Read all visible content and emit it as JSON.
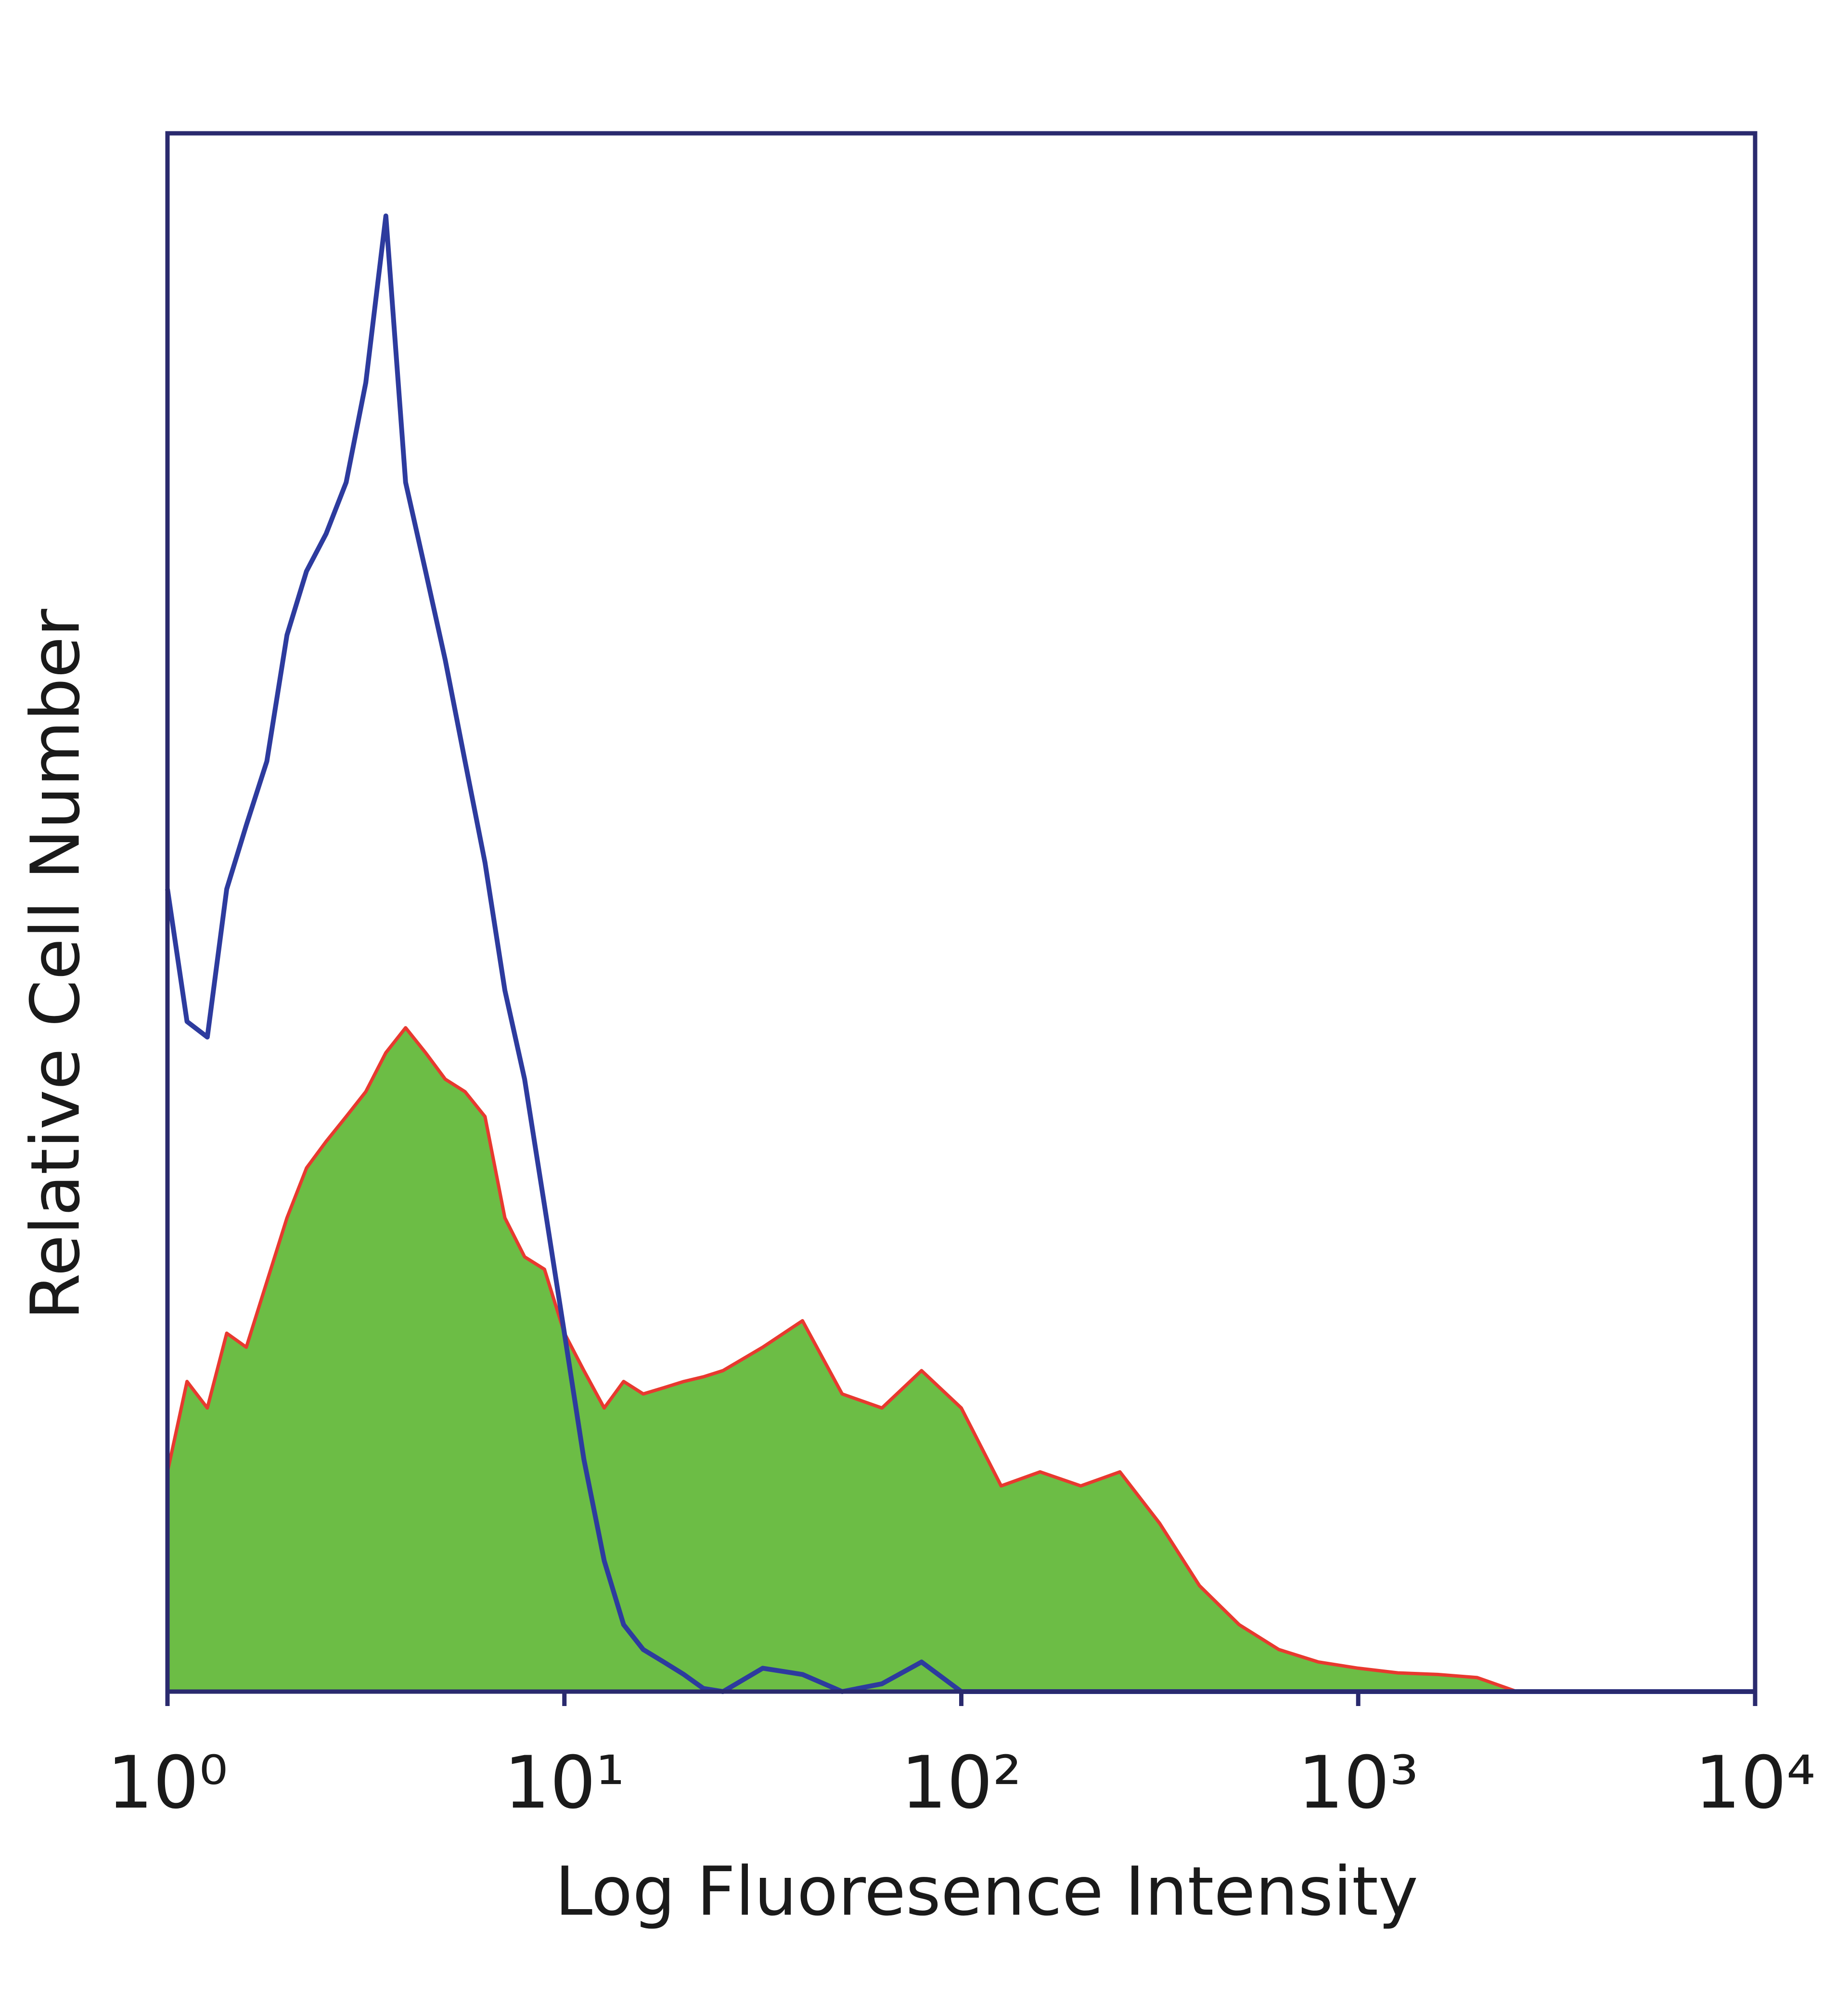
{
  "chart_data": {
    "type": "histogram-overlay",
    "xlabel": "Log Fluoresence Intensity",
    "ylabel": "Relative Cell Number",
    "xscale": "log",
    "xlim": [
      1,
      10000
    ],
    "xticks": [
      {
        "value": 1,
        "label": "10⁰"
      },
      {
        "value": 10,
        "label": "10¹"
      },
      {
        "value": 100,
        "label": "10²"
      },
      {
        "value": 1000,
        "label": "10³"
      },
      {
        "value": 10000,
        "label": "10⁴"
      }
    ],
    "ylim": [
      0,
      100
    ],
    "x": [
      1,
      1.12,
      1.26,
      1.41,
      1.58,
      1.78,
      2,
      2.24,
      2.51,
      2.82,
      3.16,
      3.55,
      3.98,
      4.47,
      5.01,
      5.62,
      6.31,
      7.08,
      7.94,
      8.91,
      10,
      11.2,
      12.6,
      14.1,
      15.8,
      17.8,
      20,
      22.4,
      25.1,
      31.6,
      39.8,
      50.1,
      63.1,
      79.4,
      100,
      126,
      158,
      200,
      251,
      316,
      398,
      501,
      631,
      794,
      1000,
      1259,
      1585,
      1995,
      2512,
      10000
    ],
    "series": [
      {
        "color": "#e8392f",
        "fill": "#6cbd45",
        "values": [
          14.1,
          19.9,
          18.2,
          23,
          22.1,
          26.3,
          30.4,
          33.6,
          35.3,
          36.9,
          38.5,
          41,
          42.6,
          41,
          39.3,
          38.5,
          36.9,
          30.4,
          27.9,
          27.1,
          23,
          20.6,
          18.2,
          19.9,
          19.1,
          19.5,
          19.9,
          20.2,
          20.6,
          22.1,
          23.8,
          19.1,
          18.2,
          20.6,
          18.2,
          13.2,
          14.1,
          13.2,
          14.1,
          10.8,
          6.8,
          4.3,
          2.7,
          1.9,
          1.5,
          1.2,
          1.1,
          0.9,
          0,
          0
        ]
      },
      {
        "color": "#2d3b9e",
        "values": [
          51.5,
          43,
          42,
          51.5,
          55.6,
          59.7,
          67.8,
          71.9,
          74.3,
          77.6,
          84,
          94.7,
          77.6,
          71.9,
          66.2,
          59.7,
          53.2,
          45,
          39.3,
          31.2,
          23,
          14.9,
          8.4,
          4.3,
          2.7,
          1.9,
          1.1,
          0.2,
          0,
          1.5,
          1.1,
          0,
          0.5,
          1.9,
          0,
          0,
          0,
          0,
          0,
          0,
          0,
          0,
          0,
          0,
          0,
          0,
          0,
          0,
          0,
          0
        ]
      }
    ],
    "frame_color": "#2a2a6e"
  }
}
